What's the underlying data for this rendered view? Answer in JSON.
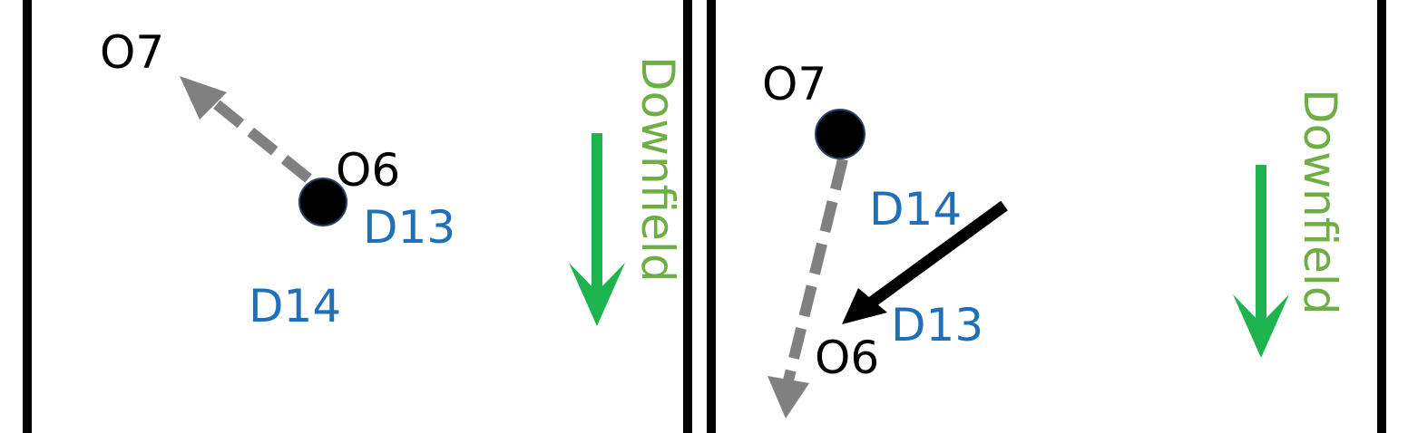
{
  "left_panel": {
    "offense_primary": "O7",
    "offense_secondary": "O6",
    "defender_near": "D13",
    "defender_far": "D14",
    "direction_label": "Downfield"
  },
  "right_panel": {
    "offense_primary": "O7",
    "offense_secondary": "O6",
    "defender_near": "D14",
    "defender_far": "D13",
    "direction_label": "Downfield"
  },
  "colors": {
    "border": "#000000",
    "offense_text": "#000000",
    "defense_text": "#1f6fba",
    "direction_arrow": "#1db34f",
    "direction_text": "#6fae45",
    "pass_arrow": "#808080",
    "run_arrow": "#000000",
    "player_dot": "#000000",
    "player_dot_outline": "#2b3d6b"
  }
}
